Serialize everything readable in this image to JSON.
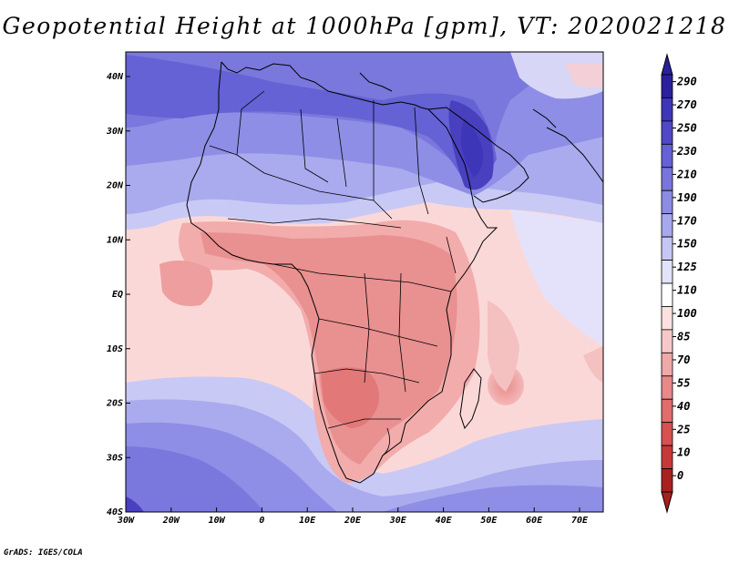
{
  "title": "Geopotential Height at 1000hPa [gpm], VT: 2020021218",
  "credit": "GrADS: IGES/COLA",
  "map": {
    "variable": "Geopotential Height",
    "level": "1000hPa",
    "units": "gpm",
    "valid_time": "2020021218",
    "lon_range": [
      -30,
      76
    ],
    "lat_range": [
      -40,
      45
    ]
  },
  "lon_ticks": [
    "30W",
    "20W",
    "10W",
    "0",
    "10E",
    "20E",
    "30E",
    "40E",
    "50E",
    "60E",
    "70E"
  ],
  "lat_ticks": [
    "40N",
    "30N",
    "20N",
    "10N",
    "EQ",
    "10S",
    "20S",
    "30S",
    "40S"
  ],
  "colorbar": {
    "labels": [
      "290",
      "270",
      "250",
      "230",
      "210",
      "190",
      "170",
      "150",
      "125",
      "110",
      "100",
      "85",
      "70",
      "55",
      "40",
      "25",
      "10",
      "0"
    ],
    "colors": [
      "#2a1f9c",
      "#3d36b8",
      "#5048c6",
      "#6462d4",
      "#7876dc",
      "#8c8ce4",
      "#a8a8ee",
      "#c6c6f5",
      "#e2e2fb",
      "#ffffff",
      "#fde0e0",
      "#f8c8c8",
      "#f0a8a8",
      "#e88888",
      "#e06c6c",
      "#d85050",
      "#c83838",
      "#a82020"
    ]
  }
}
